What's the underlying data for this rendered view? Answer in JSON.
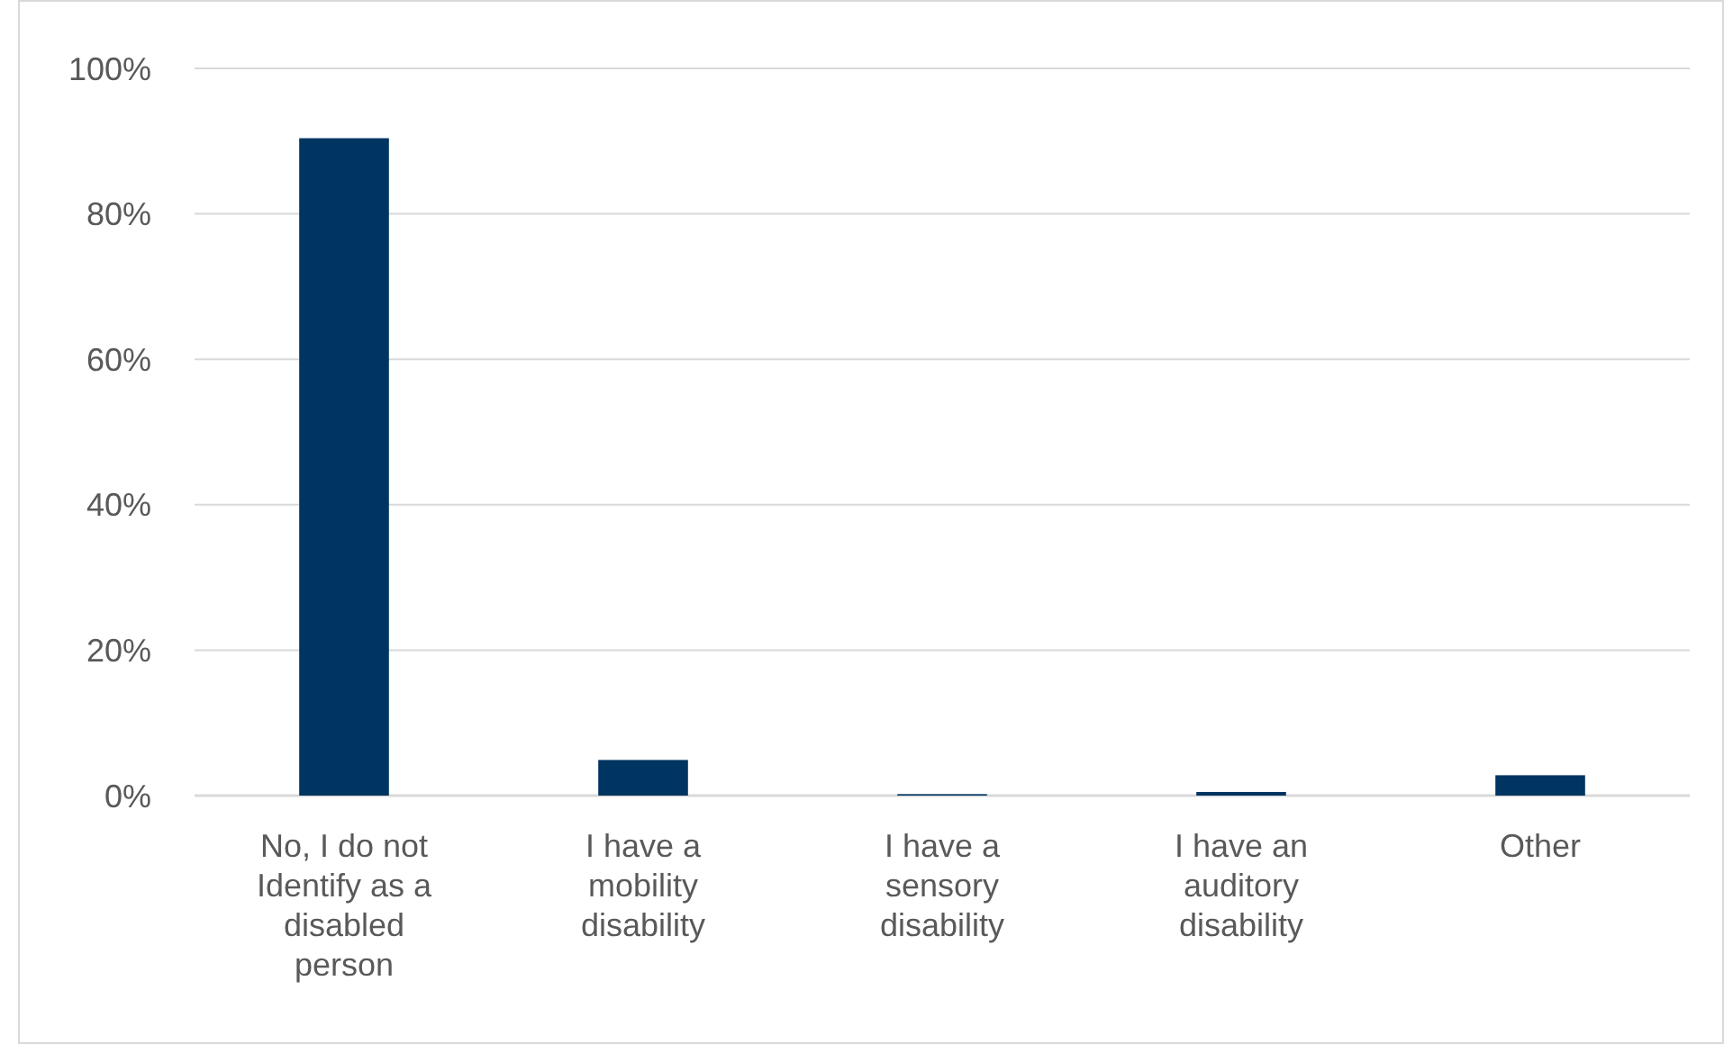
{
  "chart_data": {
    "type": "bar",
    "categories": [
      "No, I do not Identify as a disabled person",
      "I have a mobility disability",
      "I have a sensory disability",
      "I have an auditory disability",
      "Other"
    ],
    "values": [
      90.4,
      4.9,
      0.2,
      0.5,
      2.8
    ],
    "color": "#003461",
    "ylim": [
      0,
      100
    ],
    "yticks": [
      {
        "value": 0,
        "label": "0%"
      },
      {
        "value": 20,
        "label": "20%"
      },
      {
        "value": 40,
        "label": "40%"
      },
      {
        "value": 60,
        "label": "60%"
      },
      {
        "value": 80,
        "label": "80%"
      },
      {
        "value": 100,
        "label": "100%"
      }
    ],
    "grid": "y"
  }
}
